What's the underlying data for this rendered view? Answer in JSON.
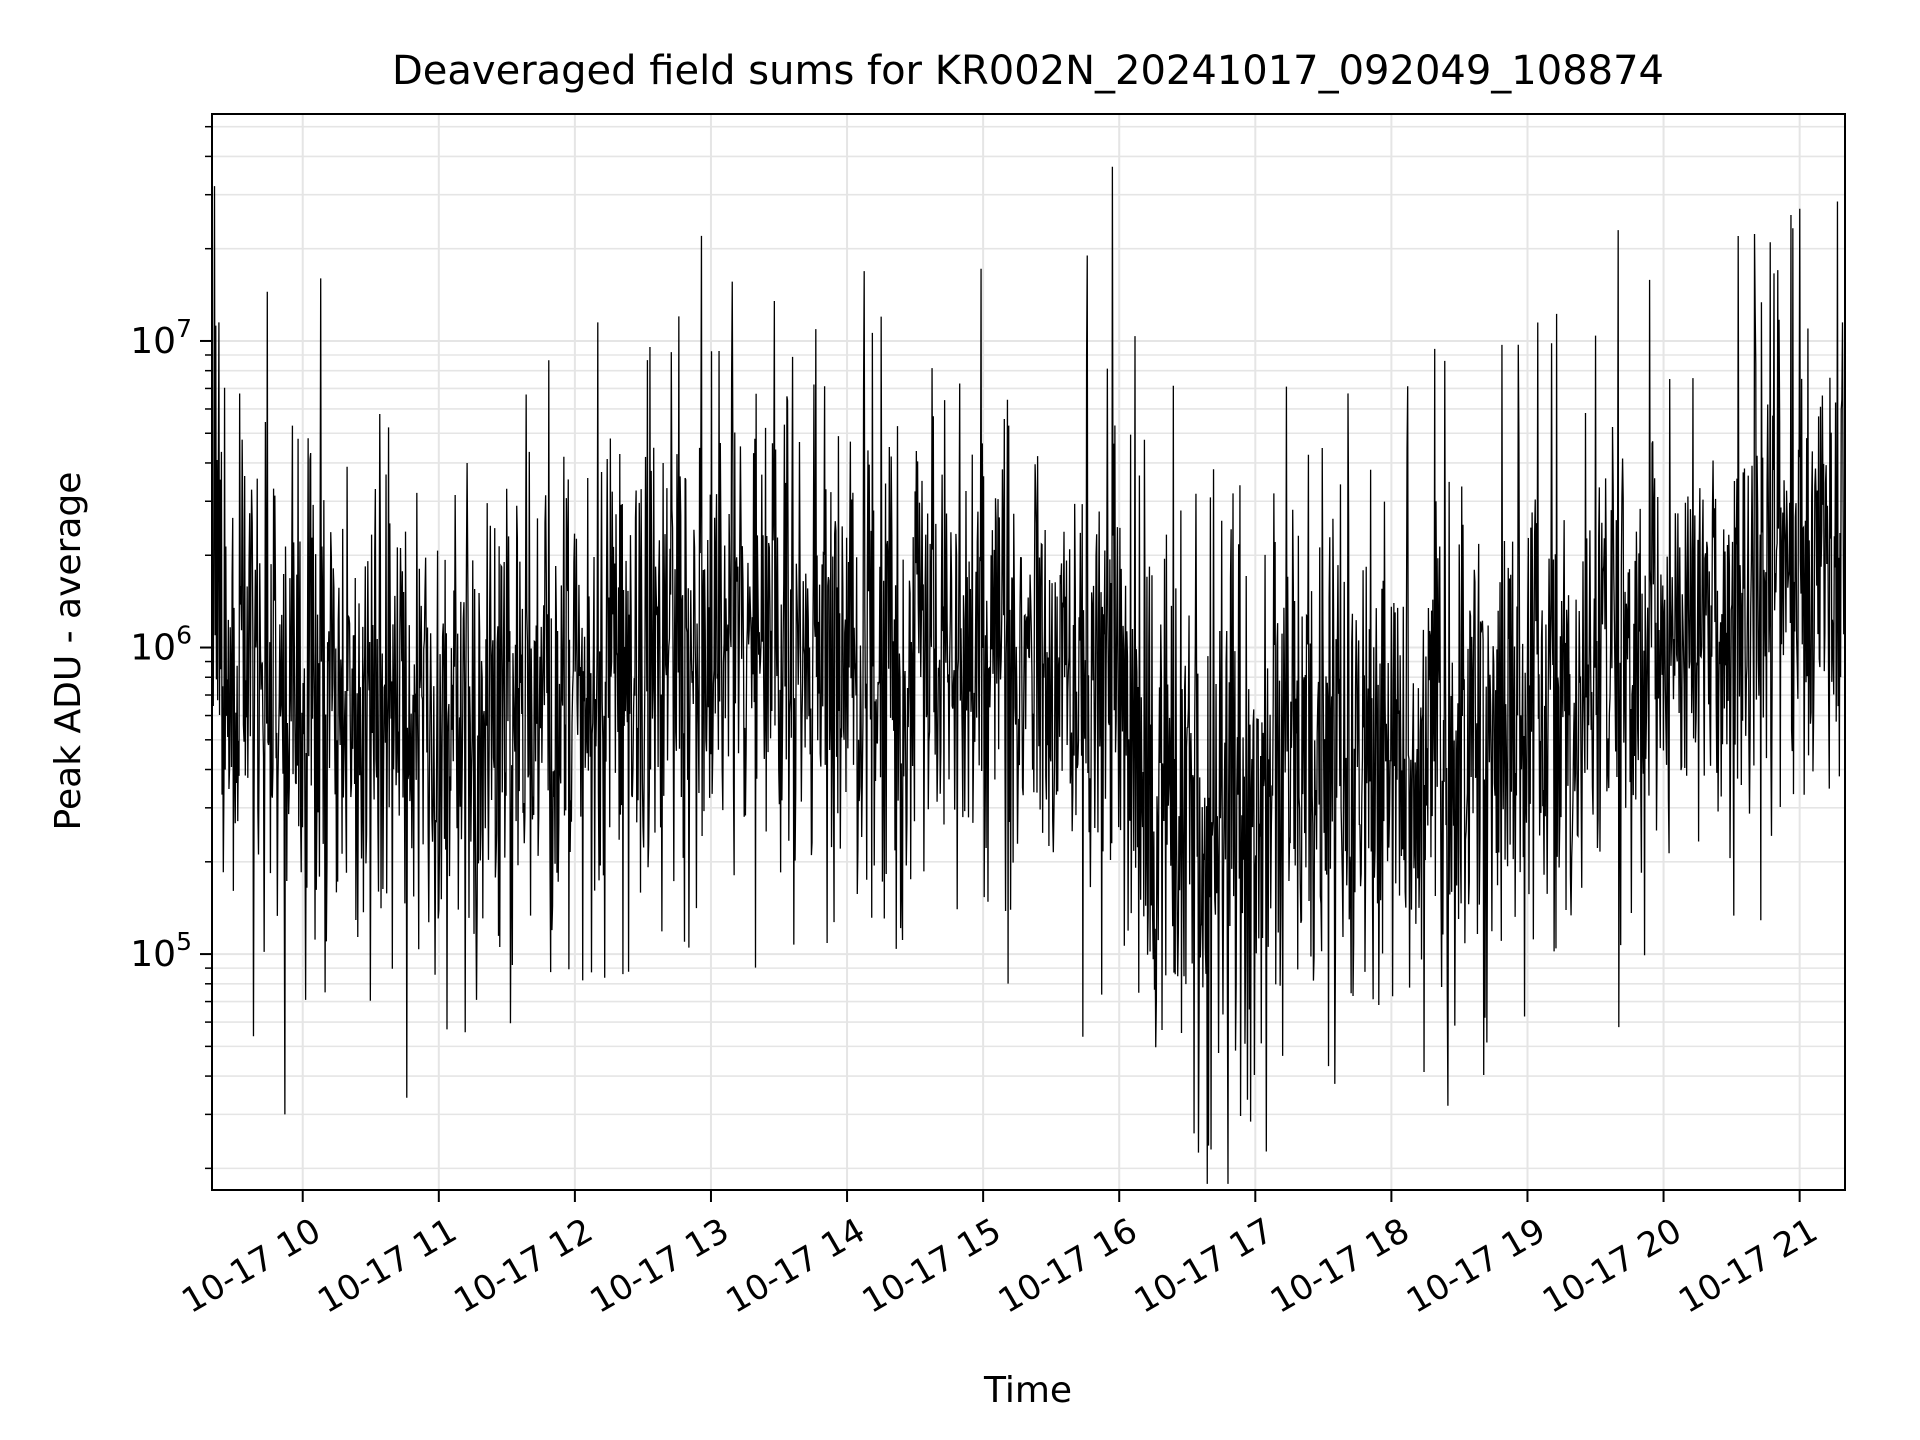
{
  "chart_data": {
    "type": "line",
    "title": "Deaveraged field sums for KR002N_20241017_092049_108874",
    "xlabel": "Time",
    "ylabel": "Peak ADU - average",
    "y_scale": "log",
    "ylim": [
      17000,
      55000000
    ],
    "xlim": [
      "2024-10-17T09:20",
      "2024-10-17T21:20"
    ],
    "x_ticks": [
      {
        "t": "2024-10-17T10:00",
        "label": "10-17 10"
      },
      {
        "t": "2024-10-17T11:00",
        "label": "10-17 11"
      },
      {
        "t": "2024-10-17T12:00",
        "label": "10-17 12"
      },
      {
        "t": "2024-10-17T13:00",
        "label": "10-17 13"
      },
      {
        "t": "2024-10-17T14:00",
        "label": "10-17 14"
      },
      {
        "t": "2024-10-17T15:00",
        "label": "10-17 15"
      },
      {
        "t": "2024-10-17T16:00",
        "label": "10-17 16"
      },
      {
        "t": "2024-10-17T17:00",
        "label": "10-17 17"
      },
      {
        "t": "2024-10-17T18:00",
        "label": "10-17 18"
      },
      {
        "t": "2024-10-17T19:00",
        "label": "10-17 19"
      },
      {
        "t": "2024-10-17T20:00",
        "label": "10-17 20"
      },
      {
        "t": "2024-10-17T21:00",
        "label": "10-17 21"
      }
    ],
    "y_ticks": [
      {
        "value": 100000,
        "base": "10",
        "exp": "5"
      },
      {
        "value": 1000000,
        "base": "10",
        "exp": "6"
      },
      {
        "value": 10000000,
        "base": "10",
        "exp": "7"
      }
    ],
    "grid": true,
    "line_color": "#000000",
    "grid_color": "#e5e5e5",
    "notable_points": [
      {
        "t": "2024-10-17T09:21",
        "y": 32000000
      },
      {
        "t": "2024-10-17T09:23",
        "y": 11500000
      },
      {
        "t": "2024-10-17T09:52",
        "y": 30000
      },
      {
        "t": "2024-10-17T10:08",
        "y": 16000000
      },
      {
        "t": "2024-10-17T10:46",
        "y": 34000
      },
      {
        "t": "2024-10-17T12:10",
        "y": 11500000
      },
      {
        "t": "2024-10-17T13:28",
        "y": 13500000
      },
      {
        "t": "2024-10-17T15:57",
        "y": 37000000
      },
      {
        "t": "2024-10-17T15:46",
        "y": 19000000
      },
      {
        "t": "2024-10-17T16:33",
        "y": 26000
      },
      {
        "t": "2024-10-17T16:35",
        "y": 22500
      },
      {
        "t": "2024-10-17T18:25",
        "y": 32000
      },
      {
        "t": "2024-10-17T19:40",
        "y": 23000000
      },
      {
        "t": "2024-10-17T20:33",
        "y": 22000000
      },
      {
        "t": "2024-10-17T20:47",
        "y": 21000000
      },
      {
        "t": "2024-10-17T21:00",
        "y": 27000000
      },
      {
        "t": "2024-10-17T21:19",
        "y": 11500000
      }
    ],
    "trend": [
      {
        "t": "2024-10-17T09:20",
        "y": 800000
      },
      {
        "t": "2024-10-17T10:00",
        "y": 700000
      },
      {
        "t": "2024-10-17T11:00",
        "y": 600000
      },
      {
        "t": "2024-10-17T12:00",
        "y": 650000
      },
      {
        "t": "2024-10-17T13:00",
        "y": 1200000
      },
      {
        "t": "2024-10-17T14:00",
        "y": 1000000
      },
      {
        "t": "2024-10-17T15:00",
        "y": 900000
      },
      {
        "t": "2024-10-17T16:00",
        "y": 700000
      },
      {
        "t": "2024-10-17T16:40",
        "y": 250000
      },
      {
        "t": "2024-10-17T17:30",
        "y": 450000
      },
      {
        "t": "2024-10-17T18:30",
        "y": 500000
      },
      {
        "t": "2024-10-17T19:30",
        "y": 700000
      },
      {
        "t": "2024-10-17T20:30",
        "y": 1300000
      },
      {
        "t": "2024-10-17T21:20",
        "y": 1800000
      }
    ],
    "spread_decades": [
      {
        "t": "2024-10-17T09:20",
        "spread": 0.55
      },
      {
        "t": "2024-10-17T16:00",
        "spread": 0.6
      },
      {
        "t": "2024-10-17T16:40",
        "spread": 0.75
      },
      {
        "t": "2024-10-17T18:00",
        "spread": 0.6
      },
      {
        "t": "2024-10-17T21:20",
        "spread": 0.5
      }
    ]
  }
}
